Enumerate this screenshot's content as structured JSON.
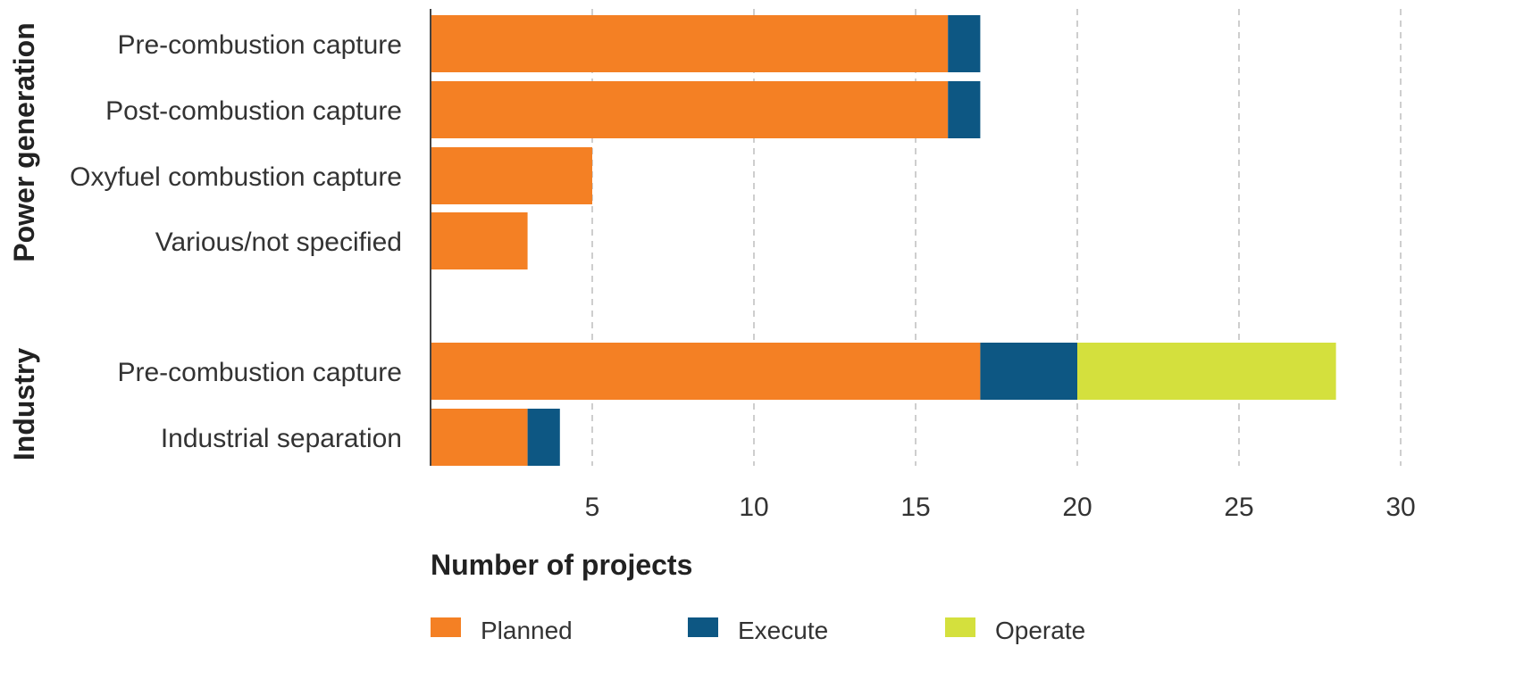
{
  "chart_data": {
    "type": "bar",
    "orientation": "horizontal",
    "stacked": true,
    "xlabel": "Number of projects",
    "xlim": [
      0,
      30
    ],
    "xticks": [
      5,
      10,
      15,
      20,
      25,
      30
    ],
    "grid": "vertical dashed",
    "legend_position": "bottom",
    "groups": [
      {
        "name": "Power generation",
        "categories": [
          0,
          1,
          2,
          3
        ]
      },
      {
        "name": "Industry",
        "categories": [
          4,
          5
        ]
      }
    ],
    "categories": [
      "Pre-combustion capture",
      "Post-combustion capture",
      "Oxyfuel combustion capture",
      "Various/not specified",
      "Pre-combustion capture",
      "Industrial separation"
    ],
    "series": [
      {
        "name": "Planned",
        "color": "#f48024",
        "values": [
          16,
          16,
          5,
          3,
          17,
          3
        ]
      },
      {
        "name": "Execute",
        "color": "#0d5783",
        "values": [
          1,
          1,
          0,
          0,
          3,
          1
        ]
      },
      {
        "name": "Operate",
        "color": "#d4e03d",
        "values": [
          0,
          0,
          0,
          0,
          8,
          0
        ]
      }
    ]
  }
}
